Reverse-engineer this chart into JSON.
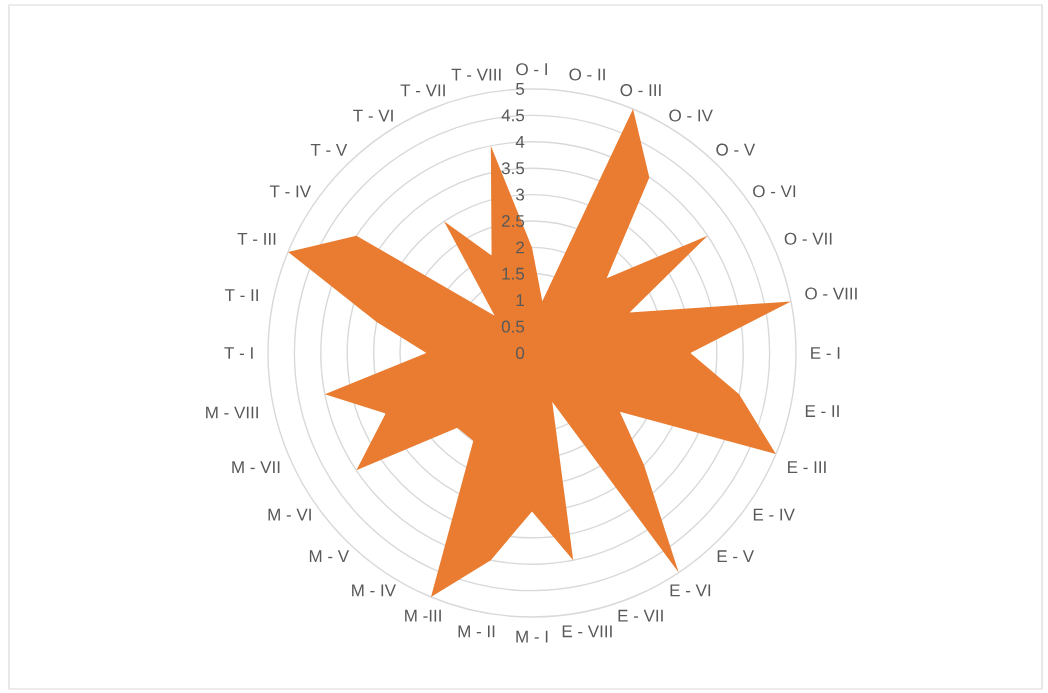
{
  "chart_data": {
    "type": "radar",
    "categories": [
      "O - I",
      "O - II",
      "O - III",
      "O - IV",
      "O - V",
      "O - VI",
      "O - VII",
      "O - VIII",
      "E - I",
      "E - II",
      "E - III",
      "E - IV",
      "E - V",
      "E - VI",
      "E - VII",
      "E - VIII",
      "M - I",
      "M - II",
      "M -III",
      "M - IV",
      "M - V",
      "M - VI",
      "M - VII",
      "M - VIII",
      "T - I",
      "T - II",
      "T - III",
      "T - IV",
      "T - V",
      "T - VI",
      "T - VII",
      "T - VIII"
    ],
    "series": [
      {
        "color": "#e97c30",
        "values": [
          2,
          1,
          5,
          4,
          2,
          4,
          2,
          5,
          3,
          4,
          5,
          2,
          3,
          5,
          1,
          4,
          3,
          4,
          5,
          2,
          2,
          4,
          3,
          4,
          2,
          3,
          5,
          4,
          1,
          3,
          2,
          4
        ]
      }
    ],
    "ylim": [
      0,
      5
    ],
    "yticks": [
      0,
      0.5,
      1,
      1.5,
      2,
      2.5,
      3,
      3.5,
      4,
      4.5,
      5
    ],
    "grid": "y"
  }
}
